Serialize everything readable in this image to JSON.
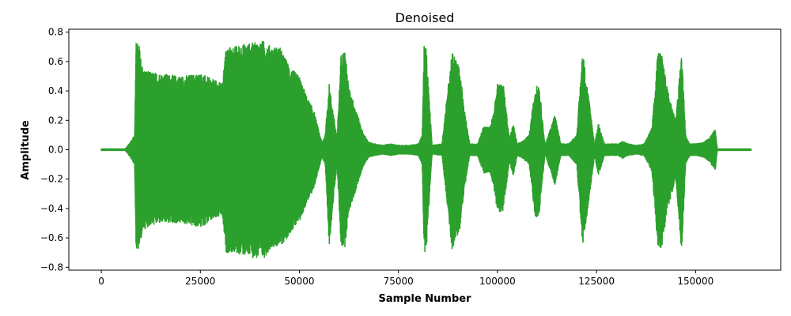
{
  "chart_data": {
    "type": "line",
    "title": "Denoised",
    "xlabel": "Sample Number",
    "ylabel": "Amplitude",
    "xlim": [
      -8200,
      171500
    ],
    "ylim": [
      -0.82,
      0.82
    ],
    "x_ticks": [
      0,
      25000,
      50000,
      75000,
      100000,
      125000,
      150000
    ],
    "x_tick_labels": [
      "0",
      "25000",
      "50000",
      "75000",
      "100000",
      "125000",
      "150000"
    ],
    "y_ticks": [
      -0.8,
      -0.6,
      -0.4,
      -0.2,
      0.0,
      0.2,
      0.4,
      0.6,
      0.8
    ],
    "y_tick_labels": [
      "−0.8",
      "−0.6",
      "−0.4",
      "−0.2",
      "0.0",
      "0.2",
      "0.4",
      "0.6",
      "0.8"
    ],
    "grid": false,
    "legend": "none",
    "series": [
      {
        "color": "#2ca02c",
        "envelope_x": [
          0,
          6000,
          6500,
          7500,
          8400,
          8800,
          9500,
          10500,
          12000,
          15000,
          20000,
          25000,
          28000,
          30500,
          31500,
          33000,
          36000,
          39000,
          41000,
          43000,
          45000,
          46500,
          48000,
          50000,
          52000,
          53500,
          55000,
          55700,
          56500,
          57500,
          59500,
          60500,
          61500,
          62500,
          64000,
          66000,
          67500,
          69000,
          71000,
          73000,
          75000,
          78000,
          80000,
          81000,
          81500,
          82000,
          83500,
          86000,
          88500,
          90500,
          91500,
          93000,
          95000,
          96500,
          98000,
          99000,
          100000,
          101500,
          103000,
          104000,
          105000,
          106500,
          108000,
          109500,
          110500,
          112000,
          114500,
          116000,
          117000,
          118000,
          120000,
          121500,
          123500,
          124500,
          125500,
          127000,
          129000,
          130500,
          131500,
          133000,
          135000,
          137000,
          139000,
          140500,
          141500,
          143000,
          145000,
          146500,
          147500,
          148500,
          150000,
          152000,
          153500,
          154500,
          155000,
          155500,
          160000,
          164000
        ],
        "envelope_upper": [
          0.005,
          0.005,
          0.02,
          0.06,
          0.1,
          0.73,
          0.72,
          0.55,
          0.53,
          0.52,
          0.5,
          0.52,
          0.48,
          0.45,
          0.7,
          0.7,
          0.72,
          0.73,
          0.74,
          0.7,
          0.7,
          0.62,
          0.55,
          0.5,
          0.35,
          0.28,
          0.12,
          0.05,
          0.1,
          0.45,
          0.08,
          0.65,
          0.68,
          0.42,
          0.3,
          0.12,
          0.05,
          0.04,
          0.03,
          0.04,
          0.03,
          0.03,
          0.04,
          0.1,
          0.73,
          0.7,
          0.03,
          0.04,
          0.68,
          0.55,
          0.3,
          0.04,
          0.04,
          0.16,
          0.15,
          0.25,
          0.45,
          0.45,
          0.08,
          0.18,
          0.04,
          0.06,
          0.1,
          0.42,
          0.45,
          0.03,
          0.24,
          0.04,
          0.04,
          0.04,
          0.1,
          0.68,
          0.26,
          0.04,
          0.18,
          0.04,
          0.04,
          0.04,
          0.06,
          0.04,
          0.03,
          0.04,
          0.15,
          0.68,
          0.64,
          0.4,
          0.2,
          0.68,
          0.1,
          0.04,
          0.04,
          0.05,
          0.08,
          0.12,
          0.14,
          0.005,
          0.005,
          0.005
        ],
        "envelope_lower": [
          -0.005,
          -0.005,
          -0.02,
          -0.06,
          -0.1,
          -0.7,
          -0.68,
          -0.55,
          -0.52,
          -0.5,
          -0.5,
          -0.53,
          -0.48,
          -0.45,
          -0.7,
          -0.7,
          -0.72,
          -0.74,
          -0.74,
          -0.66,
          -0.66,
          -0.62,
          -0.55,
          -0.5,
          -0.35,
          -0.28,
          -0.12,
          -0.05,
          -0.1,
          -0.66,
          -0.1,
          -0.66,
          -0.66,
          -0.42,
          -0.3,
          -0.12,
          -0.05,
          -0.04,
          -0.03,
          -0.04,
          -0.03,
          -0.03,
          -0.04,
          -0.1,
          -0.7,
          -0.7,
          -0.03,
          -0.04,
          -0.68,
          -0.55,
          -0.3,
          -0.04,
          -0.04,
          -0.16,
          -0.15,
          -0.25,
          -0.42,
          -0.42,
          -0.08,
          -0.18,
          -0.04,
          -0.06,
          -0.1,
          -0.46,
          -0.45,
          -0.03,
          -0.24,
          -0.04,
          -0.04,
          -0.04,
          -0.1,
          -0.66,
          -0.26,
          -0.04,
          -0.18,
          -0.04,
          -0.04,
          -0.04,
          -0.06,
          -0.04,
          -0.03,
          -0.04,
          -0.15,
          -0.68,
          -0.66,
          -0.4,
          -0.2,
          -0.72,
          -0.1,
          -0.04,
          -0.04,
          -0.05,
          -0.08,
          -0.12,
          -0.14,
          -0.005,
          -0.005,
          -0.005
        ]
      }
    ]
  }
}
